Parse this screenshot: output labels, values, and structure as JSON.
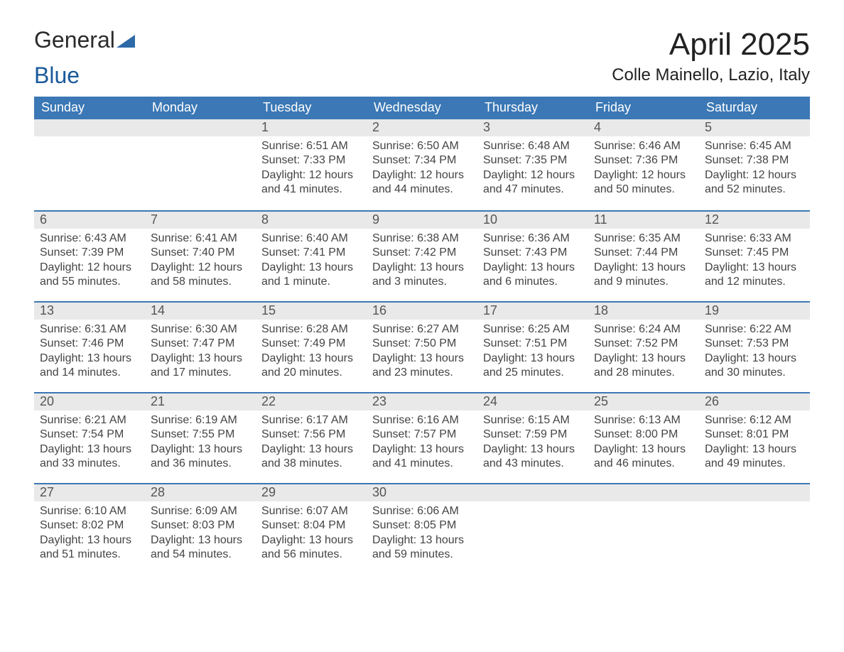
{
  "colors": {
    "header_blue": "#3b78b5",
    "accent_blue": "#3b78b5",
    "logo_dark": "#2b2b2b",
    "logo_blue": "#1a5a9a",
    "day_strip_bg": "#e9e9e9",
    "page_bg": "#ffffff",
    "text_dark": "#333333"
  },
  "logo": {
    "word1": "General",
    "word2": "Blue"
  },
  "title": "April 2025",
  "location": "Colle Mainello, Lazio, Italy",
  "weekdays": [
    "Sunday",
    "Monday",
    "Tuesday",
    "Wednesday",
    "Thursday",
    "Friday",
    "Saturday"
  ],
  "labels": {
    "sunrise": "Sunrise:",
    "sunset": "Sunset:",
    "daylight": "Daylight:"
  },
  "weeks": [
    [
      null,
      null,
      {
        "n": "1",
        "sunrise": "6:51 AM",
        "sunset": "7:33 PM",
        "daylight": "12 hours and 41 minutes."
      },
      {
        "n": "2",
        "sunrise": "6:50 AM",
        "sunset": "7:34 PM",
        "daylight": "12 hours and 44 minutes."
      },
      {
        "n": "3",
        "sunrise": "6:48 AM",
        "sunset": "7:35 PM",
        "daylight": "12 hours and 47 minutes."
      },
      {
        "n": "4",
        "sunrise": "6:46 AM",
        "sunset": "7:36 PM",
        "daylight": "12 hours and 50 minutes."
      },
      {
        "n": "5",
        "sunrise": "6:45 AM",
        "sunset": "7:38 PM",
        "daylight": "12 hours and 52 minutes."
      }
    ],
    [
      {
        "n": "6",
        "sunrise": "6:43 AM",
        "sunset": "7:39 PM",
        "daylight": "12 hours and 55 minutes."
      },
      {
        "n": "7",
        "sunrise": "6:41 AM",
        "sunset": "7:40 PM",
        "daylight": "12 hours and 58 minutes."
      },
      {
        "n": "8",
        "sunrise": "6:40 AM",
        "sunset": "7:41 PM",
        "daylight": "13 hours and 1 minute."
      },
      {
        "n": "9",
        "sunrise": "6:38 AM",
        "sunset": "7:42 PM",
        "daylight": "13 hours and 3 minutes."
      },
      {
        "n": "10",
        "sunrise": "6:36 AM",
        "sunset": "7:43 PM",
        "daylight": "13 hours and 6 minutes."
      },
      {
        "n": "11",
        "sunrise": "6:35 AM",
        "sunset": "7:44 PM",
        "daylight": "13 hours and 9 minutes."
      },
      {
        "n": "12",
        "sunrise": "6:33 AM",
        "sunset": "7:45 PM",
        "daylight": "13 hours and 12 minutes."
      }
    ],
    [
      {
        "n": "13",
        "sunrise": "6:31 AM",
        "sunset": "7:46 PM",
        "daylight": "13 hours and 14 minutes."
      },
      {
        "n": "14",
        "sunrise": "6:30 AM",
        "sunset": "7:47 PM",
        "daylight": "13 hours and 17 minutes."
      },
      {
        "n": "15",
        "sunrise": "6:28 AM",
        "sunset": "7:49 PM",
        "daylight": "13 hours and 20 minutes."
      },
      {
        "n": "16",
        "sunrise": "6:27 AM",
        "sunset": "7:50 PM",
        "daylight": "13 hours and 23 minutes."
      },
      {
        "n": "17",
        "sunrise": "6:25 AM",
        "sunset": "7:51 PM",
        "daylight": "13 hours and 25 minutes."
      },
      {
        "n": "18",
        "sunrise": "6:24 AM",
        "sunset": "7:52 PM",
        "daylight": "13 hours and 28 minutes."
      },
      {
        "n": "19",
        "sunrise": "6:22 AM",
        "sunset": "7:53 PM",
        "daylight": "13 hours and 30 minutes."
      }
    ],
    [
      {
        "n": "20",
        "sunrise": "6:21 AM",
        "sunset": "7:54 PM",
        "daylight": "13 hours and 33 minutes."
      },
      {
        "n": "21",
        "sunrise": "6:19 AM",
        "sunset": "7:55 PM",
        "daylight": "13 hours and 36 minutes."
      },
      {
        "n": "22",
        "sunrise": "6:17 AM",
        "sunset": "7:56 PM",
        "daylight": "13 hours and 38 minutes."
      },
      {
        "n": "23",
        "sunrise": "6:16 AM",
        "sunset": "7:57 PM",
        "daylight": "13 hours and 41 minutes."
      },
      {
        "n": "24",
        "sunrise": "6:15 AM",
        "sunset": "7:59 PM",
        "daylight": "13 hours and 43 minutes."
      },
      {
        "n": "25",
        "sunrise": "6:13 AM",
        "sunset": "8:00 PM",
        "daylight": "13 hours and 46 minutes."
      },
      {
        "n": "26",
        "sunrise": "6:12 AM",
        "sunset": "8:01 PM",
        "daylight": "13 hours and 49 minutes."
      }
    ],
    [
      {
        "n": "27",
        "sunrise": "6:10 AM",
        "sunset": "8:02 PM",
        "daylight": "13 hours and 51 minutes."
      },
      {
        "n": "28",
        "sunrise": "6:09 AM",
        "sunset": "8:03 PM",
        "daylight": "13 hours and 54 minutes."
      },
      {
        "n": "29",
        "sunrise": "6:07 AM",
        "sunset": "8:04 PM",
        "daylight": "13 hours and 56 minutes."
      },
      {
        "n": "30",
        "sunrise": "6:06 AM",
        "sunset": "8:05 PM",
        "daylight": "13 hours and 59 minutes."
      },
      null,
      null,
      null
    ]
  ]
}
